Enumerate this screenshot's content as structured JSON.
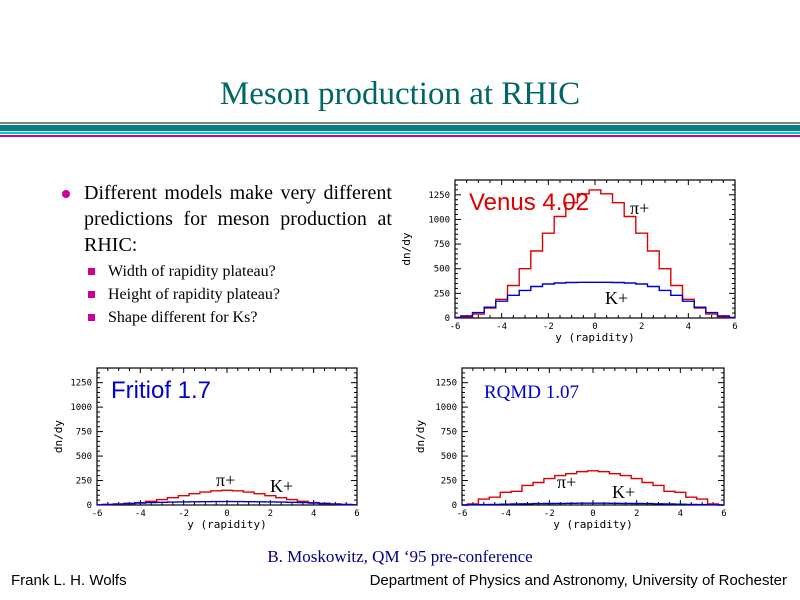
{
  "slide": {
    "title": "Meson production at RHIC",
    "bullet": "Different models make very different predictions for meson production at RHIC:",
    "sub_bullets": [
      "Width of rapidity plateau?",
      "Height of rapidity plateau?",
      "Shape different for Ks?"
    ],
    "credit": "B. Moskowitz, QM ‘95 pre-conference",
    "footer_left": "Frank L. H. Wolfs",
    "footer_right": "Department of Physics and Astronomy, University of Rochester"
  },
  "colors": {
    "title": "#006666",
    "pion_series": "#dd0000",
    "kaon_series": "#0000cc",
    "bullet": "#cc0099",
    "credit": "#000080"
  },
  "chart_data": [
    {
      "type": "line",
      "title": "Venus 4.02",
      "xlabel": "y (rapidity)",
      "ylabel": "dn/dy",
      "xlim": [
        -6,
        6
      ],
      "ylim": [
        0,
        1400
      ],
      "xticks": [
        -6,
        -4,
        -2,
        0,
        2,
        4,
        6
      ],
      "yticks": [
        0,
        250,
        500,
        750,
        1000,
        1250
      ],
      "series": [
        {
          "name": "π+",
          "step": true,
          "x": [
            -6,
            -5.5,
            -5,
            -4.5,
            -4,
            -3.5,
            -3,
            -2.5,
            -2,
            -1.5,
            -1,
            -0.5,
            0,
            0.5,
            1,
            1.5,
            2,
            2.5,
            3,
            3.5,
            4,
            4.5,
            5,
            5.5,
            6
          ],
          "values": [
            2,
            10,
            40,
            100,
            190,
            330,
            500,
            680,
            860,
            1030,
            1170,
            1260,
            1300,
            1260,
            1170,
            1030,
            860,
            680,
            500,
            330,
            190,
            100,
            40,
            10,
            2
          ]
        },
        {
          "name": "K+",
          "step": true,
          "x": [
            -6,
            -5.5,
            -5,
            -4.5,
            -4,
            -3.5,
            -3,
            -2.5,
            -2,
            -1.5,
            -1,
            -0.5,
            0,
            0.5,
            1,
            1.5,
            2,
            2.5,
            3,
            3.5,
            4,
            4.5,
            5,
            5.5,
            6
          ],
          "values": [
            5,
            20,
            55,
            110,
            170,
            230,
            280,
            320,
            345,
            355,
            360,
            362,
            362,
            362,
            360,
            355,
            345,
            320,
            280,
            230,
            170,
            110,
            55,
            20,
            5
          ]
        }
      ]
    },
    {
      "type": "line",
      "title": "Fritiof 1.7",
      "xlabel": "y (rapidity)",
      "ylabel": "dn/dy",
      "xlim": [
        -6,
        6
      ],
      "ylim": [
        0,
        1400
      ],
      "xticks": [
        -6,
        -4,
        -2,
        0,
        2,
        4,
        6
      ],
      "yticks": [
        0,
        250,
        500,
        750,
        1000,
        1250
      ],
      "series": [
        {
          "name": "π+",
          "step": true,
          "x": [
            -6,
            -5.5,
            -5,
            -4.5,
            -4,
            -3.5,
            -3,
            -2.5,
            -2,
            -1.5,
            -1,
            -0.5,
            0,
            0.5,
            1,
            1.5,
            2,
            2.5,
            3,
            3.5,
            4,
            4.5,
            5,
            5.5,
            6
          ],
          "values": [
            2,
            4,
            8,
            15,
            25,
            38,
            55,
            75,
            95,
            115,
            132,
            145,
            150,
            145,
            132,
            115,
            95,
            75,
            55,
            38,
            25,
            15,
            8,
            4,
            2
          ]
        },
        {
          "name": "K+",
          "step": true,
          "x": [
            -6,
            -5.5,
            -5,
            -4.5,
            -4,
            -3.5,
            -3,
            -2.5,
            -2,
            -1.5,
            -1,
            -0.5,
            0,
            0.5,
            1,
            1.5,
            2,
            2.5,
            3,
            3.5,
            4,
            4.5,
            5,
            5.5,
            6
          ],
          "values": [
            2,
            5,
            10,
            15,
            20,
            25,
            28,
            30,
            32,
            33,
            34,
            35,
            35,
            35,
            34,
            33,
            32,
            30,
            28,
            25,
            20,
            15,
            10,
            5,
            2
          ]
        }
      ]
    },
    {
      "type": "line",
      "title": "RQMD 1.07",
      "xlabel": "y (rapidity)",
      "ylabel": "dn/dy",
      "xlim": [
        -6,
        6
      ],
      "ylim": [
        0,
        1400
      ],
      "xticks": [
        -6,
        -4,
        -2,
        0,
        2,
        4,
        6
      ],
      "yticks": [
        0,
        250,
        500,
        750,
        1000,
        1250
      ],
      "series": [
        {
          "name": "π+",
          "step": true,
          "x": [
            -6,
            -5.5,
            -5,
            -4.5,
            -4,
            -3.5,
            -3,
            -2.5,
            -2,
            -1.5,
            -1,
            -0.5,
            0,
            0.5,
            1,
            1.5,
            2,
            2.5,
            3,
            3.5,
            4,
            4.5,
            5,
            5.5,
            6
          ],
          "values": [
            0,
            10,
            60,
            80,
            130,
            140,
            200,
            230,
            270,
            300,
            320,
            340,
            350,
            340,
            320,
            300,
            270,
            230,
            200,
            140,
            130,
            80,
            60,
            10,
            0
          ]
        },
        {
          "name": "K+",
          "step": true,
          "x": [
            -6,
            -5.5,
            -5,
            -4.5,
            -4,
            -3.5,
            -3,
            -2.5,
            -2,
            -1.5,
            -1,
            -0.5,
            0,
            0.5,
            1,
            1.5,
            2,
            2.5,
            3,
            3.5,
            4,
            4.5,
            5,
            5.5,
            6
          ],
          "values": [
            0,
            2,
            4,
            6,
            8,
            10,
            12,
            14,
            15,
            16,
            17,
            18,
            18,
            18,
            17,
            16,
            15,
            14,
            12,
            10,
            8,
            6,
            4,
            2,
            0
          ]
        }
      ]
    }
  ]
}
